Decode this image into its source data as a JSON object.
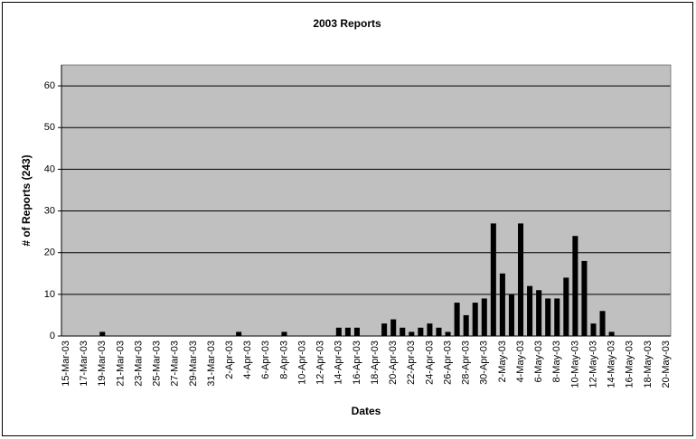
{
  "chart_data": {
    "type": "bar",
    "title": "2003 Reports",
    "x_label": "Dates",
    "y_label": "# of Reports (243)",
    "categories": [
      "15-Mar-03",
      null,
      "17-Mar-03",
      null,
      "19-Mar-03",
      null,
      "21-Mar-03",
      null,
      "23-Mar-03",
      null,
      "25-Mar-03",
      null,
      "27-Mar-03",
      null,
      "29-Mar-03",
      null,
      "31-Mar-03",
      null,
      "2-Apr-03",
      null,
      "4-Apr-03",
      null,
      "6-Apr-03",
      null,
      "8-Apr-03",
      null,
      "10-Apr-03",
      null,
      "12-Apr-03",
      null,
      "14-Apr-03",
      null,
      "16-Apr-03",
      null,
      "18-Apr-03",
      null,
      "20-Apr-03",
      null,
      "22-Apr-03",
      null,
      "24-Apr-03",
      null,
      "26-Apr-03",
      null,
      "28-Apr-03",
      null,
      "30-Apr-03",
      null,
      "2-May-03",
      null,
      "4-May-03",
      null,
      "6-May-03",
      null,
      "8-May-03",
      null,
      "10-May-03",
      null,
      "12-May-03",
      null,
      "14-May-03",
      null,
      "16-May-03",
      null,
      "18-May-03",
      null,
      "20-May-03"
    ],
    "values": [
      0,
      0,
      0,
      0,
      1,
      0,
      0,
      0,
      0,
      0,
      0,
      0,
      0,
      0,
      0,
      0,
      0,
      0,
      0,
      1,
      0,
      0,
      0,
      0,
      1,
      0,
      0,
      0,
      0,
      0,
      2,
      2,
      2,
      0,
      0,
      3,
      4,
      2,
      1,
      2,
      3,
      2,
      1,
      8,
      5,
      8,
      9,
      27,
      15,
      10,
      27,
      12,
      11,
      9,
      9,
      14,
      24,
      18,
      3,
      6,
      1,
      0,
      0,
      0,
      0,
      0,
      0
    ],
    "color": "#000000",
    "plot_background": "#c0c0c0",
    "ylim": [
      0,
      65
    ],
    "yticks": [
      0,
      10,
      20,
      30,
      40,
      50,
      60
    ],
    "grid": true
  }
}
